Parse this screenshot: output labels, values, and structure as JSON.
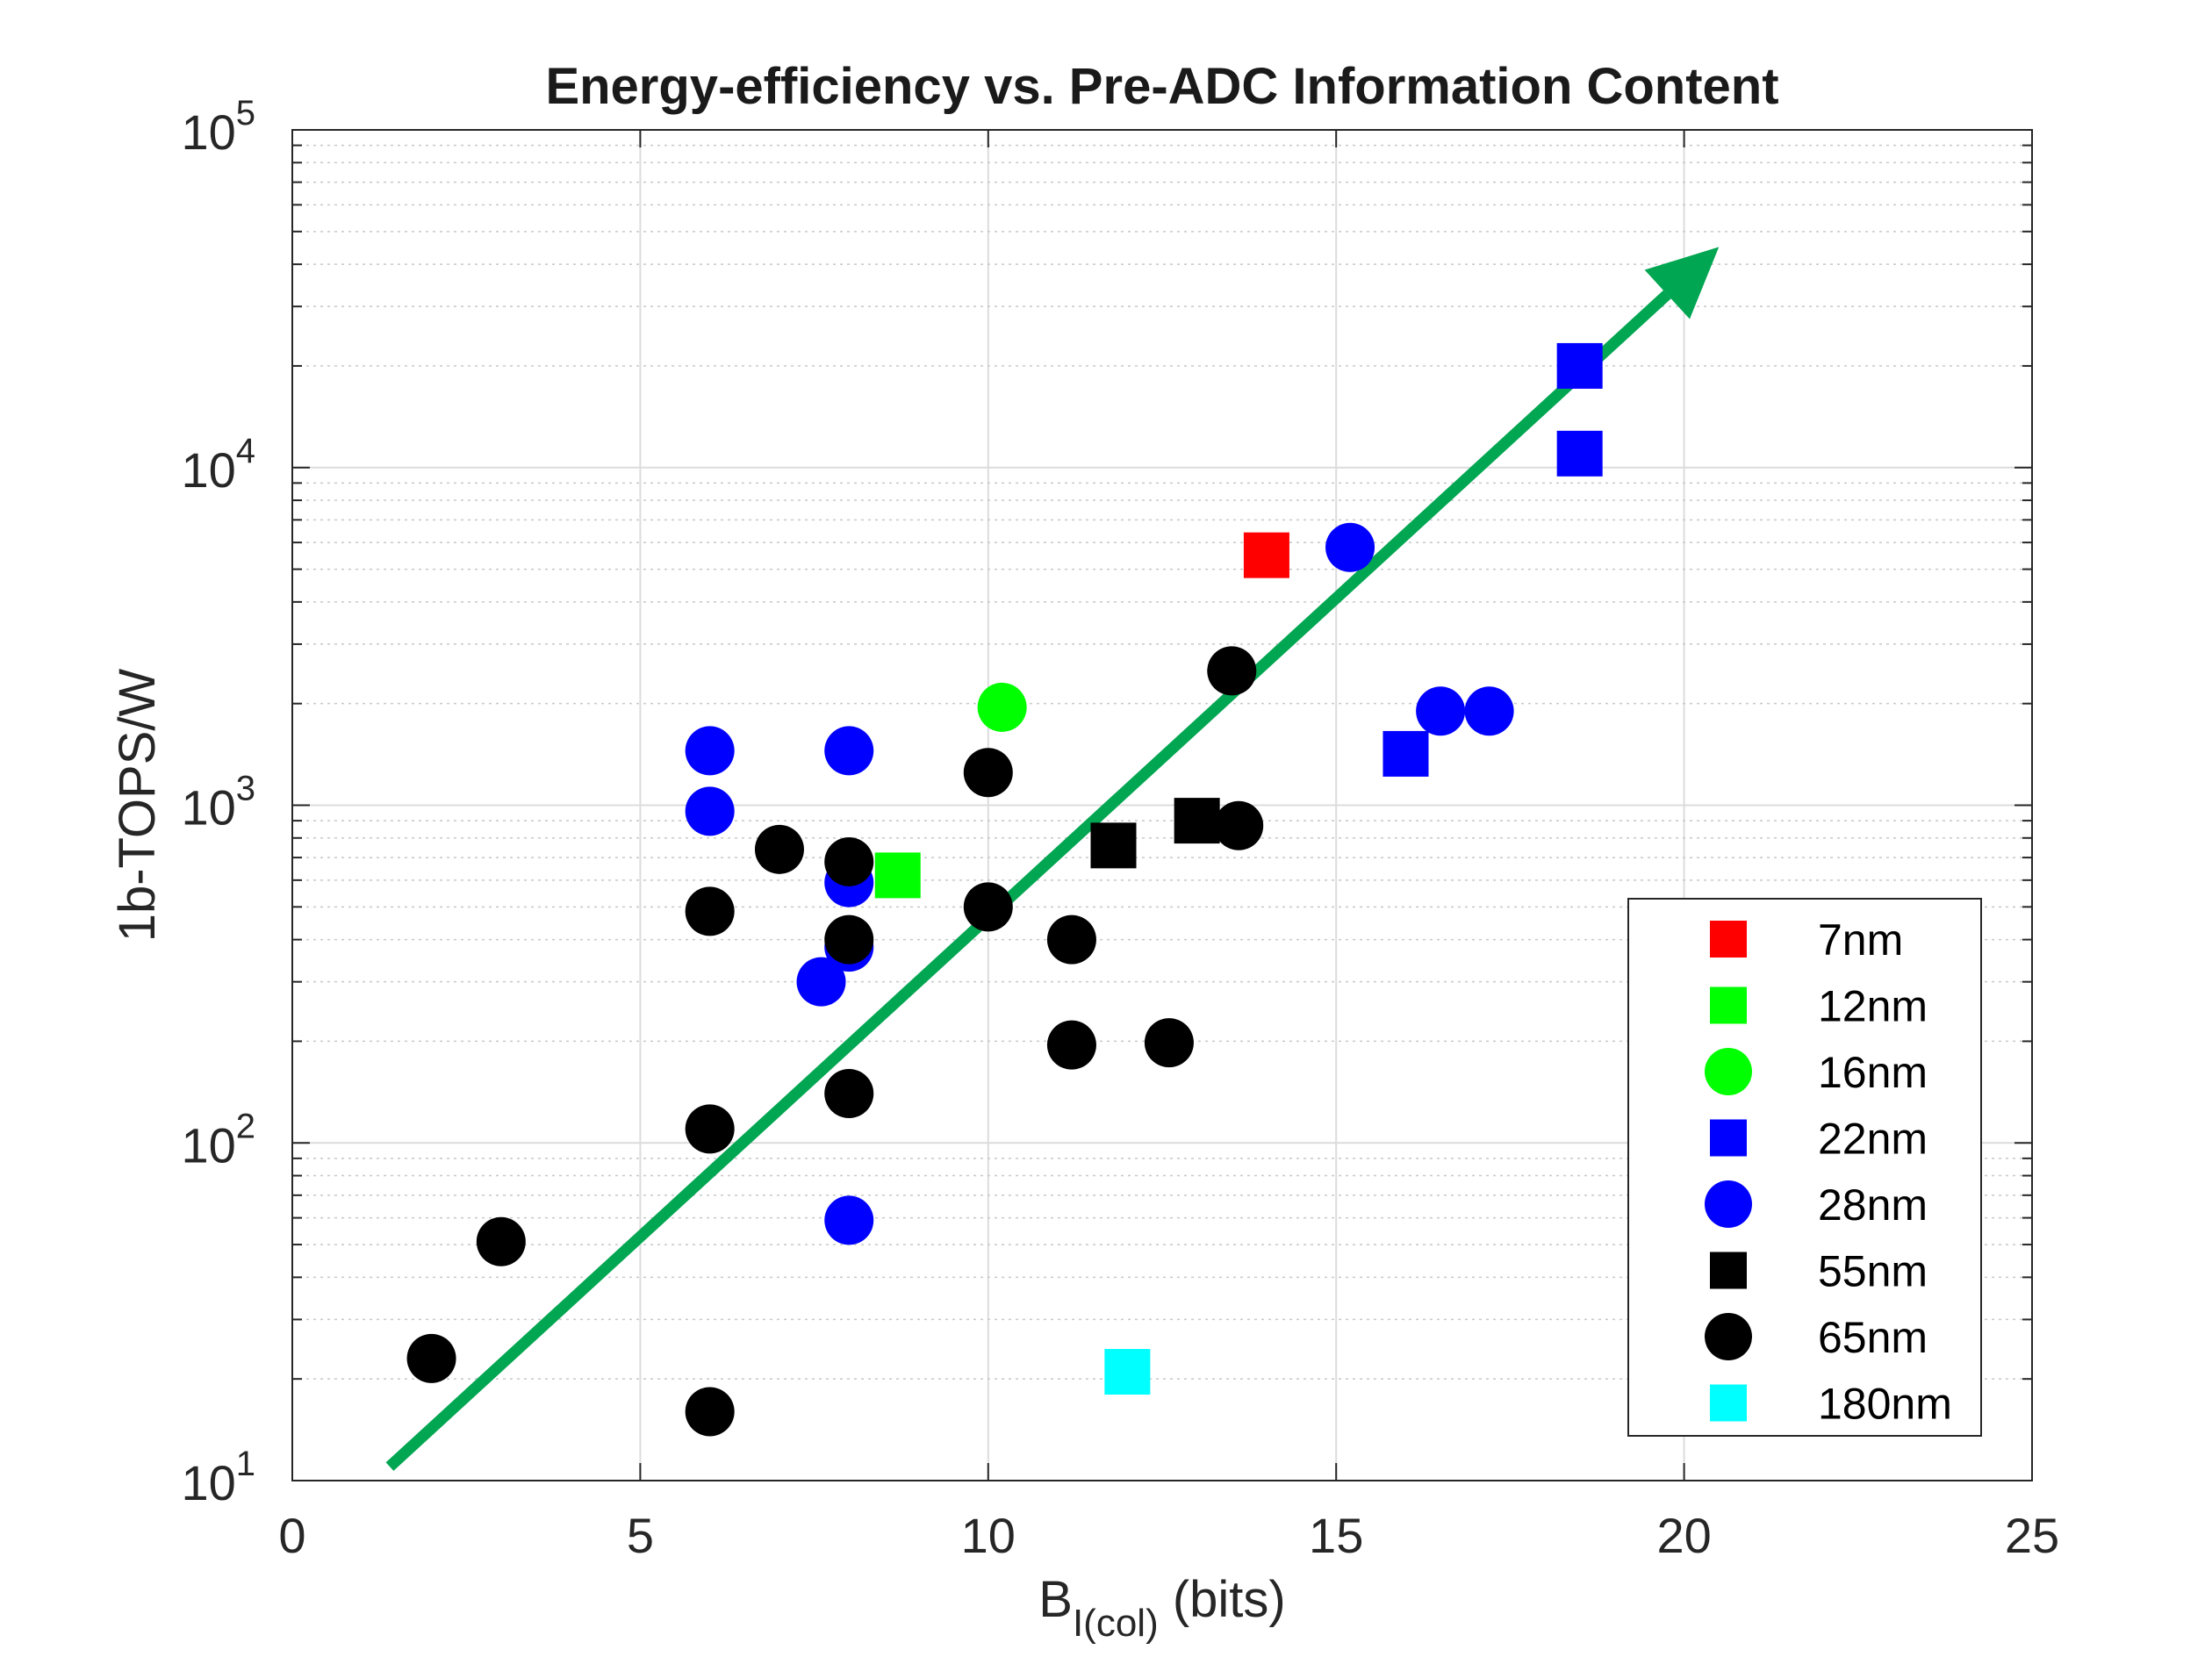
{
  "chart_data": {
    "type": "scatter",
    "title": "Energy-efficiency vs. Pre-ADC Information Content",
    "xlabel": {
      "main": "B",
      "sub": "I(col)",
      "rest": " (bits)"
    },
    "ylabel": "1b-TOPS/W",
    "xlim": [
      0,
      25
    ],
    "ylim": [
      10,
      100000
    ],
    "yscale": "log",
    "grid": true,
    "minor_grid": true,
    "legend_position": "bottom-right",
    "x_ticks": [
      {
        "value": 0,
        "label": "0"
      },
      {
        "value": 5,
        "label": "5"
      },
      {
        "value": 10,
        "label": "10"
      },
      {
        "value": 15,
        "label": "15"
      },
      {
        "value": 20,
        "label": "20"
      },
      {
        "value": 25,
        "label": "25"
      }
    ],
    "y_ticks": [
      {
        "value": 10,
        "base": "10",
        "exp": "1"
      },
      {
        "value": 100,
        "base": "10",
        "exp": "2"
      },
      {
        "value": 1000,
        "base": "10",
        "exp": "3"
      },
      {
        "value": 10000,
        "base": "10",
        "exp": "4"
      },
      {
        "value": 100000,
        "base": "10",
        "exp": "5"
      }
    ],
    "series": [
      {
        "name": "7nm",
        "marker": "square",
        "color": "#ff0000",
        "points": [
          [
            14.0,
            5500
          ]
        ]
      },
      {
        "name": "12nm",
        "marker": "square",
        "color": "#00ff00",
        "points": [
          [
            8.7,
            620
          ]
        ]
      },
      {
        "name": "16nm",
        "marker": "circle",
        "color": "#00ff00",
        "points": [
          [
            10.2,
            1950
          ]
        ]
      },
      {
        "name": "22nm",
        "marker": "square",
        "color": "#0000ff",
        "points": [
          [
            18.5,
            20000
          ],
          [
            18.5,
            11000
          ],
          [
            16.0,
            1420
          ]
        ]
      },
      {
        "name": "28nm",
        "marker": "circle",
        "color": "#0000ff",
        "points": [
          [
            15.2,
            5800
          ],
          [
            16.5,
            1900
          ],
          [
            17.2,
            1900
          ],
          [
            6.0,
            1450
          ],
          [
            8.0,
            1450
          ],
          [
            6.0,
            960
          ],
          [
            8.0,
            590
          ],
          [
            8.0,
            380
          ],
          [
            7.6,
            300
          ],
          [
            8.0,
            59
          ]
        ]
      },
      {
        "name": "55nm",
        "marker": "square",
        "color": "#000000",
        "points": [
          [
            11.8,
            760
          ],
          [
            13.0,
            900
          ]
        ]
      },
      {
        "name": "65nm",
        "marker": "circle",
        "color": "#000000",
        "points": [
          [
            2.0,
            23
          ],
          [
            3.0,
            51
          ],
          [
            6.0,
            16
          ],
          [
            6.0,
            110
          ],
          [
            6.0,
            485
          ],
          [
            7.0,
            740
          ],
          [
            8.0,
            680
          ],
          [
            8.0,
            400
          ],
          [
            8.0,
            140
          ],
          [
            10.0,
            1250
          ],
          [
            10.0,
            500
          ],
          [
            11.2,
            400
          ],
          [
            11.2,
            195
          ],
          [
            12.6,
            198
          ],
          [
            13.5,
            2500
          ],
          [
            13.6,
            870
          ]
        ]
      },
      {
        "name": "180nm",
        "marker": "square",
        "color": "#00ffff",
        "points": [
          [
            12.0,
            21
          ]
        ]
      }
    ],
    "annotations": [
      {
        "type": "arrow",
        "color": "#00a651",
        "from": [
          1.4,
          11
        ],
        "to": [
          20.5,
          45000
        ]
      }
    ]
  }
}
